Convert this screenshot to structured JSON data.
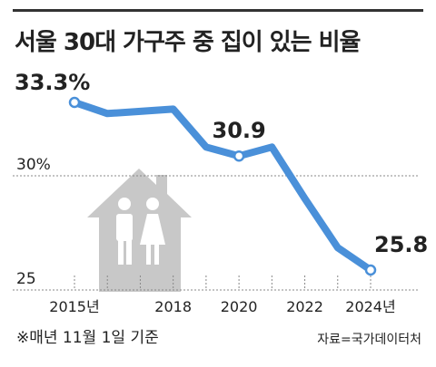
{
  "header": {
    "title": "서울 30대 가구주 중 집이 있는 비율"
  },
  "footer": {
    "note": "※매년 11월 1일 기준",
    "source": "자료=국가데이터처"
  },
  "colors": {
    "line": "#4a90d9",
    "house": "#c8c8c8",
    "grid": "#888888"
  },
  "chart_data": {
    "type": "line",
    "title": "서울 30대 가구주 중 집이 있는 비율",
    "x": [
      2015,
      2016,
      2017,
      2018,
      2019,
      2020,
      2021,
      2022,
      2023,
      2024
    ],
    "series": [
      {
        "values": [
          33.3,
          32.8,
          32.9,
          33.0,
          31.3,
          30.9,
          31.3,
          29.0,
          26.8,
          25.8
        ]
      }
    ],
    "ylim": [
      25,
      34
    ],
    "y_gridlines": [
      {
        "value": 30,
        "label": "30%"
      },
      {
        "value": 25,
        "label": "25"
      }
    ],
    "x_ticks": [
      {
        "value": 2015,
        "label": "2015년"
      },
      {
        "value": 2018,
        "label": "2018"
      },
      {
        "value": 2020,
        "label": "2020"
      },
      {
        "value": 2022,
        "label": "2022"
      },
      {
        "value": 2024,
        "label": "2024년"
      }
    ],
    "annotations": [
      {
        "x": 2015,
        "y": 33.3,
        "label": "33.3%"
      },
      {
        "x": 2020,
        "y": 30.9,
        "label": "30.9"
      },
      {
        "x": 2024,
        "y": 25.8,
        "label": "25.8"
      }
    ],
    "marked_points": [
      2015,
      2020,
      2024
    ],
    "grid": true
  }
}
